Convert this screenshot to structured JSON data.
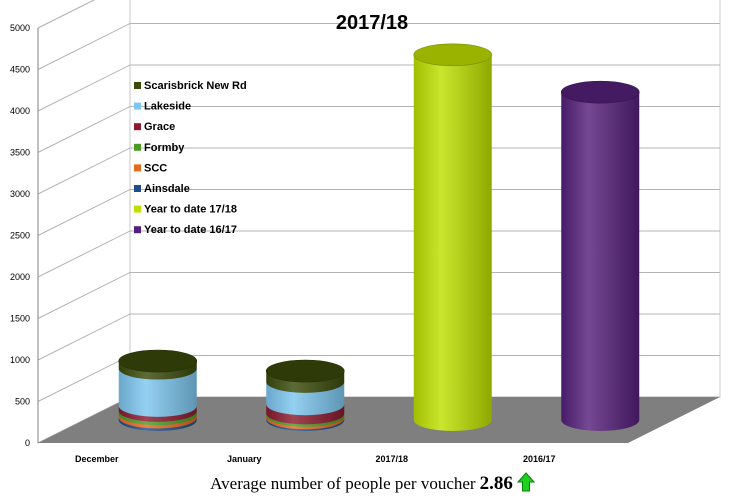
{
  "chart_data": {
    "type": "bar",
    "title": "2017/18",
    "categories": [
      "December",
      "January",
      "2017/18",
      "2016/17"
    ],
    "ylim": [
      0,
      5000
    ],
    "yticks": [
      0,
      500,
      1000,
      1500,
      2000,
      2500,
      3000,
      3500,
      4000,
      4500,
      5000
    ],
    "legend_position": "left",
    "series": [
      {
        "name": "Ainsdale",
        "color": "#1F4E8C",
        "values": [
          30,
          20,
          0,
          0
        ]
      },
      {
        "name": "SCC",
        "color": "#E8681E",
        "values": [
          40,
          30,
          0,
          0
        ]
      },
      {
        "name": "Formby",
        "color": "#4E9A27",
        "values": [
          40,
          30,
          0,
          0
        ]
      },
      {
        "name": "Grace",
        "color": "#8B1A2E",
        "values": [
          60,
          110,
          0,
          0
        ]
      },
      {
        "name": "Lakeside",
        "color": "#7DC6EF",
        "values": [
          450,
          270,
          0,
          0
        ]
      },
      {
        "name": "Scarisbrick New Rd",
        "color": "#3A4A0A",
        "values": [
          90,
          130,
          0,
          0
        ]
      },
      {
        "name": "Year to date 17/18",
        "color": "#BFE000",
        "values": [
          0,
          0,
          4400,
          0
        ]
      },
      {
        "name": "Year to date 16/17",
        "color": "#55207A",
        "values": [
          0,
          0,
          0,
          3950
        ]
      }
    ],
    "legend_order": [
      "Scarisbrick New Rd",
      "Lakeside",
      "Grace",
      "Formby",
      "SCC",
      "Ainsdale",
      "Year to date 17/18",
      "Year to date 16/17"
    ]
  },
  "footer": {
    "text": "Average number of people per voucher",
    "value": "2.86",
    "trend": "up",
    "trend_color": "#1DD11D"
  }
}
